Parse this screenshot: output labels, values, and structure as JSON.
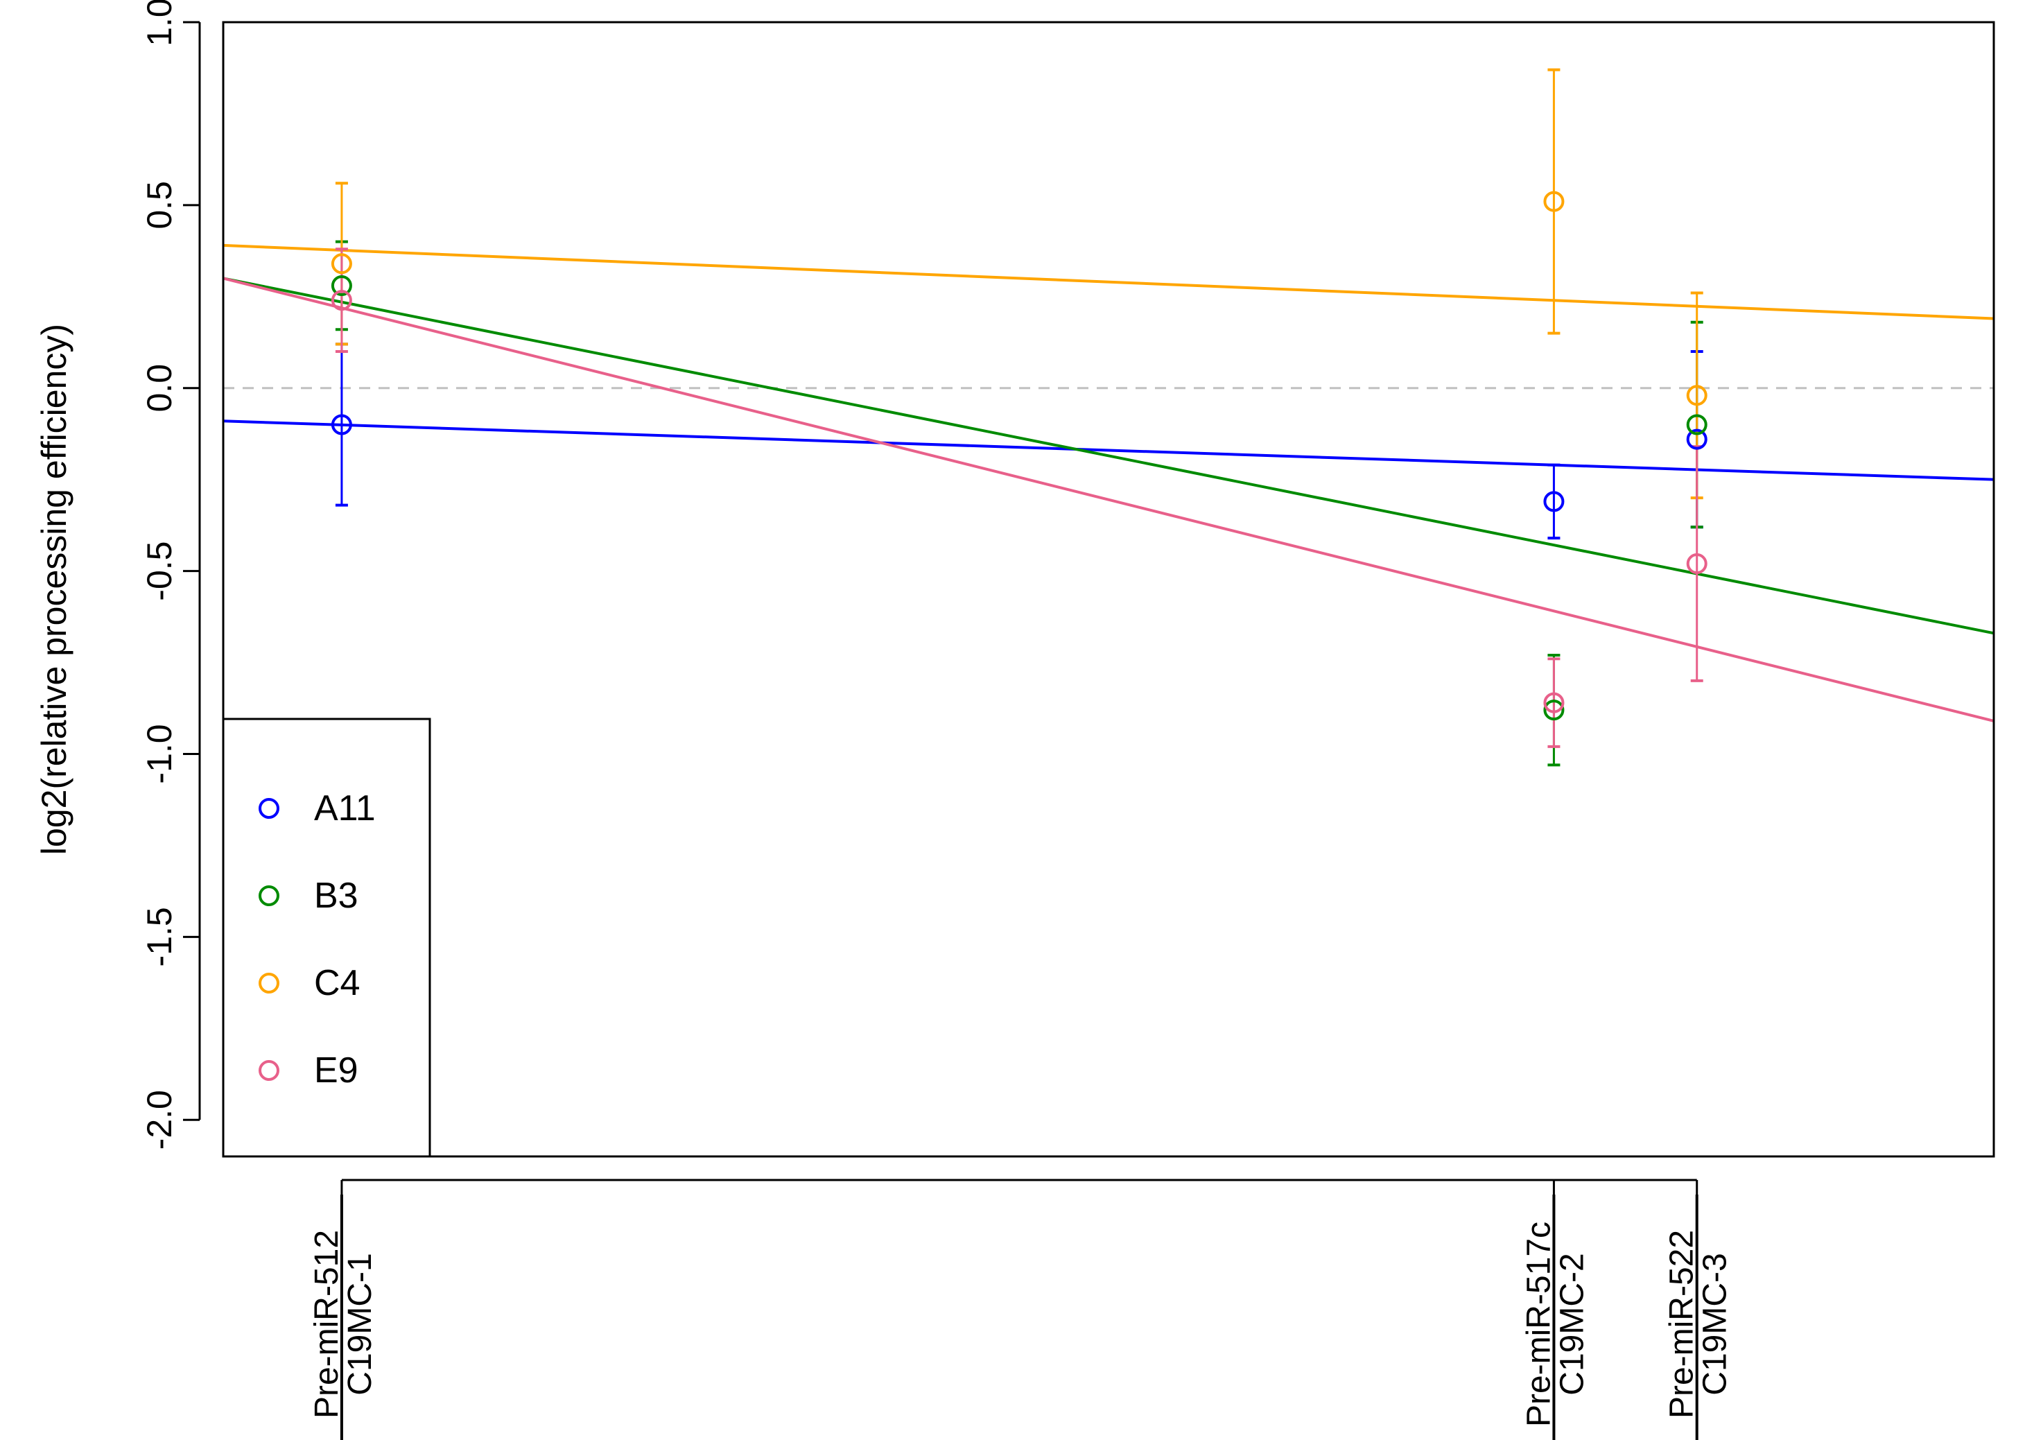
{
  "chart_data": {
    "type": "scatter",
    "title": "",
    "xlabel": "",
    "ylabel": "log2(relative processing efficiency)",
    "ylim": [
      -2.1,
      1.0
    ],
    "xlim": [
      0.0,
      13.0
    ],
    "yticks": [
      "-2.0",
      "-1.5",
      "-1.0",
      "-0.5",
      "0.0",
      "0.5",
      "1.0"
    ],
    "ytick_values": [
      -2.0,
      -1.5,
      -1.0,
      -0.5,
      0.0,
      0.5,
      1.0
    ],
    "reference_line": {
      "y": 0.0,
      "color": "#c0c0c0",
      "style": "dashed"
    },
    "categories": [
      {
        "x": 0.87,
        "line1": "Pre-miR-512",
        "line2": "C19MC-1"
      },
      {
        "x": 9.77,
        "line1": "Pre-miR-517c",
        "line2": "C19MC-2"
      },
      {
        "x": 10.82,
        "line1": "Pre-miR-522",
        "line2": "C19MC-3"
      }
    ],
    "series": [
      {
        "name": "A11",
        "color": "#0000ff",
        "points": [
          {
            "x": 0.87,
            "y": -0.1,
            "err": 0.22
          },
          {
            "x": 9.77,
            "y": -0.31,
            "err": 0.1
          },
          {
            "x": 10.82,
            "y": -0.14,
            "err": 0.24
          }
        ],
        "fit": {
          "y_start": -0.09,
          "y_end": -0.25
        }
      },
      {
        "name": "B3",
        "color": "#008b00",
        "points": [
          {
            "x": 0.87,
            "y": 0.28,
            "err": 0.12
          },
          {
            "x": 9.77,
            "y": -0.88,
            "err": 0.15
          },
          {
            "x": 10.82,
            "y": -0.1,
            "err": 0.28
          }
        ],
        "fit": {
          "y_start": 0.3,
          "y_end": -0.67
        }
      },
      {
        "name": "C4",
        "color": "#ffa500",
        "points": [
          {
            "x": 0.87,
            "y": 0.34,
            "err": 0.22
          },
          {
            "x": 9.77,
            "y": 0.51,
            "err": 0.36
          },
          {
            "x": 10.82,
            "y": -0.02,
            "err": 0.28
          }
        ],
        "fit": {
          "y_start": 0.39,
          "y_end": 0.19
        }
      },
      {
        "name": "E9",
        "color": "#e8608a",
        "points": [
          {
            "x": 0.87,
            "y": 0.24,
            "err": 0.14
          },
          {
            "x": 9.77,
            "y": -0.86,
            "err": 0.12
          },
          {
            "x": 10.82,
            "y": -0.48,
            "err": 0.32
          }
        ],
        "fit": {
          "y_start": 0.3,
          "y_end": -0.91
        }
      }
    ],
    "legend": {
      "placement": "bottom-left"
    }
  }
}
